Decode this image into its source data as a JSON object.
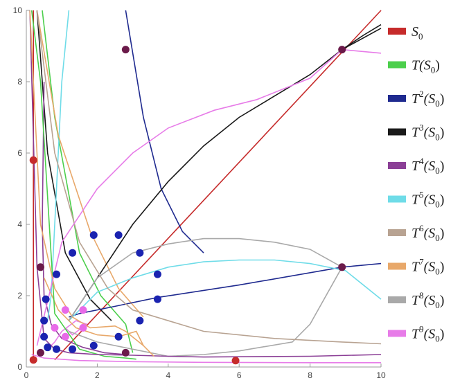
{
  "chart_data": {
    "type": "line",
    "xlim": [
      0,
      10
    ],
    "ylim": [
      0,
      10
    ],
    "xticks": [
      "0",
      "2",
      "4",
      "6",
      "8",
      "10"
    ],
    "yticks": [
      "0",
      "2",
      "4",
      "6",
      "8",
      "10"
    ],
    "legend_position": "right",
    "series": [
      {
        "name": "S",
        "sub": "0",
        "sup": "",
        "color": "#c62b2b",
        "x": [
          0.2,
          0.2,
          0.2,
          5.9
        ],
        "y": [
          0.2,
          5.8,
          0.2,
          0.18
        ]
      },
      {
        "name": "T(S",
        "sub": "0",
        "sup": "",
        "color": "#4ccf4c",
        "x": [
          0.15,
          0.4,
          0.8,
          1.5,
          2.2,
          2.8,
          3.1
        ],
        "y": [
          10,
          8,
          1.5,
          0.5,
          0.3,
          0.25,
          0.22
        ]
      },
      {
        "name": "T",
        "sub": "0",
        "sup": "2",
        "color": "#1f2a8f",
        "x": [
          1.2,
          1.5,
          2.5,
          3.7,
          6,
          8.9,
          10
        ],
        "y": [
          1.4,
          1.5,
          1.7,
          1.95,
          2.3,
          2.8,
          2.9
        ]
      },
      {
        "name": "T",
        "sub": "0",
        "sup": "3",
        "color": "#1a1a1a",
        "x": [
          1.2,
          2,
          3,
          4,
          5,
          6,
          7,
          8,
          8.9,
          10
        ],
        "y": [
          1.3,
          2.5,
          4,
          5.2,
          6.2,
          7,
          7.6,
          8.2,
          8.9,
          9.5
        ]
      },
      {
        "name": "T",
        "sub": "0",
        "sup": "4",
        "color": "#8b3f96",
        "x": [
          0.1,
          0.3,
          0.5,
          0.8,
          1.2,
          2,
          3,
          4,
          5,
          8,
          10
        ],
        "y": [
          10,
          2.8,
          0.8,
          0.5,
          0.4,
          0.35,
          0.33,
          0.3,
          0.28,
          0.3,
          0.35
        ]
      },
      {
        "name": "T",
        "sub": "0",
        "sup": "5",
        "color": "#6fdce8",
        "x": [
          1.2,
          2,
          3,
          4,
          5,
          6,
          7,
          8,
          9,
          10
        ],
        "y": [
          1.3,
          2.1,
          2.5,
          2.8,
          2.95,
          3.0,
          3.0,
          2.9,
          2.7,
          1.9
        ]
      },
      {
        "name": "T",
        "sub": "0",
        "sup": "6",
        "color": "#b8a392",
        "x": [
          0.3,
          0.8,
          1.5,
          2.3,
          3,
          5,
          7,
          8.9,
          10
        ],
        "y": [
          10,
          6,
          3.5,
          2.2,
          1.6,
          1.0,
          0.8,
          0.7,
          0.65
        ]
      },
      {
        "name": "T",
        "sub": "0",
        "sup": "7",
        "color": "#e8a86a",
        "x": [
          0.1,
          0.4,
          0.8,
          1.3,
          1.8,
          2.5,
          2.8,
          3.3,
          3.6
        ],
        "y": [
          10,
          4,
          2.2,
          1.4,
          1.1,
          1.15,
          1.0,
          0.6,
          0.3
        ]
      },
      {
        "name": "T",
        "sub": "0",
        "sup": "8",
        "color": "#a9a9a9",
        "x": [
          1.2,
          2,
          3,
          4,
          5,
          6,
          7,
          8,
          8.9
        ],
        "y": [
          1.3,
          2.5,
          3.2,
          3.45,
          3.6,
          3.6,
          3.5,
          3.3,
          2.8
        ]
      },
      {
        "name": "T",
        "sub": "0",
        "sup": "9",
        "color": "#e77ce8",
        "x": [
          0.3,
          1.0,
          2.0,
          3.0,
          4.0,
          5.3,
          6.5,
          8.0,
          8.9,
          10
        ],
        "y": [
          0.6,
          3.5,
          5.0,
          6.0,
          6.7,
          7.2,
          7.5,
          8.1,
          8.9,
          8.8
        ]
      }
    ],
    "extra_curves": [
      {
        "color": "#c62b2b",
        "x": [
          0.8,
          10
        ],
        "y": [
          0.2,
          10
        ]
      },
      {
        "color": "#c62b2b",
        "x": [
          0.2,
          0.2
        ],
        "y": [
          0.2,
          10
        ]
      },
      {
        "color": "#1a1a1a",
        "x": [
          0.3,
          0.6,
          1.1,
          1.8,
          2.4
        ],
        "y": [
          10,
          6,
          3.2,
          1.9,
          1.3
        ]
      },
      {
        "color": "#4ccf4c",
        "x": [
          0.45,
          0.8,
          1.5,
          2.1,
          2.8,
          3.0
        ],
        "y": [
          10,
          7,
          3.2,
          2,
          1.2,
          0.4
        ]
      },
      {
        "color": "#8b3f96",
        "x": [
          0.5,
          0.45,
          0.5,
          0.7,
          1.0,
          1.6,
          2.2,
          2.8
        ],
        "y": [
          8,
          4,
          2,
          1.2,
          0.8,
          0.55,
          0.4,
          0.35
        ]
      },
      {
        "color": "#6fdce8",
        "x": [
          1.2,
          1.0,
          0.9,
          0.8,
          0.7,
          0.6
        ],
        "y": [
          10,
          8,
          6,
          4,
          2,
          1.3
        ]
      },
      {
        "color": "#1f2a8f",
        "x": [
          2.8,
          3.3,
          3.8,
          4.4,
          5.0
        ],
        "y": [
          10,
          7,
          5,
          3.8,
          3.2
        ]
      },
      {
        "color": "#e77ce8",
        "x": [
          0.6,
          0.8,
          1.0,
          1.4,
          1.7,
          1.3,
          1.1
        ],
        "y": [
          0.5,
          0.7,
          1.0,
          1.3,
          1.2,
          0.9,
          1.1
        ]
      },
      {
        "color": "#e8a86a",
        "x": [
          0.5,
          0.9,
          1.4,
          2.0,
          2.6,
          3.1,
          3.3
        ],
        "y": [
          2.5,
          1.6,
          1.1,
          0.9,
          0.85,
          1.0,
          0.6
        ]
      },
      {
        "color": "#a9a9a9",
        "x": [
          1.2,
          2,
          3,
          4,
          5,
          6,
          7.5,
          8.0,
          8.9
        ],
        "y": [
          1.0,
          0.7,
          0.5,
          0.3,
          0.35,
          0.45,
          0.7,
          1.2,
          2.8
        ]
      },
      {
        "color": "#e77ce8",
        "x": [
          0.15,
          0.5,
          1.5,
          3.0,
          5.0,
          8.0,
          10
        ],
        "y": [
          0.35,
          0.25,
          0.18,
          0.15,
          0.13,
          0.12,
          0.12
        ]
      },
      {
        "color": "#1a1a1a",
        "x": [
          8.9,
          9.5,
          10
        ],
        "y": [
          8.9,
          9.3,
          9.6
        ]
      },
      {
        "color": "#e8a86a",
        "x": [
          0.3,
          0.9,
          1.8,
          2.6,
          3.3
        ],
        "y": [
          10,
          6.5,
          3.8,
          2.2,
          1.4
        ]
      }
    ],
    "points": [
      {
        "x": 0.2,
        "y": 5.8,
        "color": "#c62b2b"
      },
      {
        "x": 0.2,
        "y": 0.2,
        "color": "#c62b2b"
      },
      {
        "x": 5.9,
        "y": 0.18,
        "color": "#c62b2b"
      },
      {
        "x": 2.8,
        "y": 8.9,
        "color": "#6b1a4a"
      },
      {
        "x": 8.9,
        "y": 8.9,
        "color": "#6b1a4a"
      },
      {
        "x": 8.9,
        "y": 2.8,
        "color": "#6b1a4a"
      },
      {
        "x": 0.4,
        "y": 2.8,
        "color": "#6b1a4a"
      },
      {
        "x": 0.4,
        "y": 0.4,
        "color": "#6b1a4a"
      },
      {
        "x": 2.8,
        "y": 0.4,
        "color": "#6b1a4a"
      },
      {
        "x": 1.9,
        "y": 3.7,
        "color": "#1a23b0"
      },
      {
        "x": 2.6,
        "y": 3.7,
        "color": "#1a23b0"
      },
      {
        "x": 1.3,
        "y": 3.2,
        "color": "#1a23b0"
      },
      {
        "x": 3.2,
        "y": 3.2,
        "color": "#1a23b0"
      },
      {
        "x": 0.85,
        "y": 2.6,
        "color": "#1a23b0"
      },
      {
        "x": 3.7,
        "y": 2.6,
        "color": "#1a23b0"
      },
      {
        "x": 0.55,
        "y": 1.9,
        "color": "#1a23b0"
      },
      {
        "x": 3.7,
        "y": 1.9,
        "color": "#1a23b0"
      },
      {
        "x": 0.5,
        "y": 1.3,
        "color": "#1a23b0"
      },
      {
        "x": 3.2,
        "y": 1.3,
        "color": "#1a23b0"
      },
      {
        "x": 0.5,
        "y": 0.85,
        "color": "#1a23b0"
      },
      {
        "x": 2.6,
        "y": 0.85,
        "color": "#1a23b0"
      },
      {
        "x": 0.6,
        "y": 0.55,
        "color": "#1a23b0"
      },
      {
        "x": 1.9,
        "y": 0.6,
        "color": "#1a23b0"
      },
      {
        "x": 0.85,
        "y": 0.5,
        "color": "#1a23b0"
      },
      {
        "x": 1.3,
        "y": 0.5,
        "color": "#1a23b0"
      },
      {
        "x": 1.1,
        "y": 1.6,
        "color": "#e86ae8"
      },
      {
        "x": 1.6,
        "y": 1.6,
        "color": "#e86ae8"
      },
      {
        "x": 0.8,
        "y": 1.1,
        "color": "#e86ae8"
      },
      {
        "x": 1.6,
        "y": 1.1,
        "color": "#e86ae8"
      },
      {
        "x": 1.1,
        "y": 0.85,
        "color": "#e86ae8"
      }
    ]
  }
}
